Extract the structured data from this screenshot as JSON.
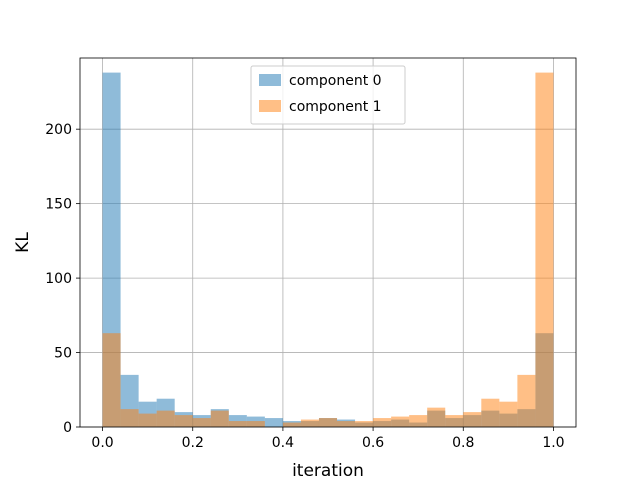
{
  "chart_data": {
    "type": "histogram",
    "title": "",
    "xlabel": "iteration",
    "ylabel": "KL",
    "xlim": [
      -0.05,
      1.05
    ],
    "ylim": [
      0,
      247.8
    ],
    "bin_edges": [
      0.0,
      0.04,
      0.08,
      0.12,
      0.16,
      0.2,
      0.24,
      0.28,
      0.32,
      0.36,
      0.4,
      0.44,
      0.48,
      0.52,
      0.56,
      0.6,
      0.64,
      0.68,
      0.72,
      0.76,
      0.8,
      0.84,
      0.88,
      0.92,
      0.96,
      1.0
    ],
    "x_ticks": [
      0.0,
      0.2,
      0.4,
      0.6,
      0.8,
      1.0
    ],
    "x_tick_labels": [
      "0.0",
      "0.2",
      "0.4",
      "0.6",
      "0.8",
      "1.0"
    ],
    "y_ticks": [
      0,
      50,
      100,
      150,
      200
    ],
    "y_tick_labels": [
      "0",
      "50",
      "100",
      "150",
      "200"
    ],
    "grid": true,
    "legend_position": "top-center",
    "series": [
      {
        "name": "component 0",
        "color": "#1f77b4",
        "alpha": 0.5,
        "values": [
          238,
          35,
          17,
          19,
          10,
          8,
          12,
          8,
          7,
          6,
          4,
          4,
          6,
          5,
          3,
          4,
          5,
          3,
          11,
          6,
          8,
          11,
          9,
          12,
          63
        ]
      },
      {
        "name": "component 1",
        "color": "#ff7f0e",
        "alpha": 0.5,
        "values": [
          63,
          12,
          9,
          11,
          8,
          6,
          11,
          4,
          4,
          0,
          3,
          5,
          6,
          4,
          4,
          6,
          7,
          8,
          13,
          8,
          10,
          19,
          17,
          35,
          238
        ]
      }
    ]
  }
}
